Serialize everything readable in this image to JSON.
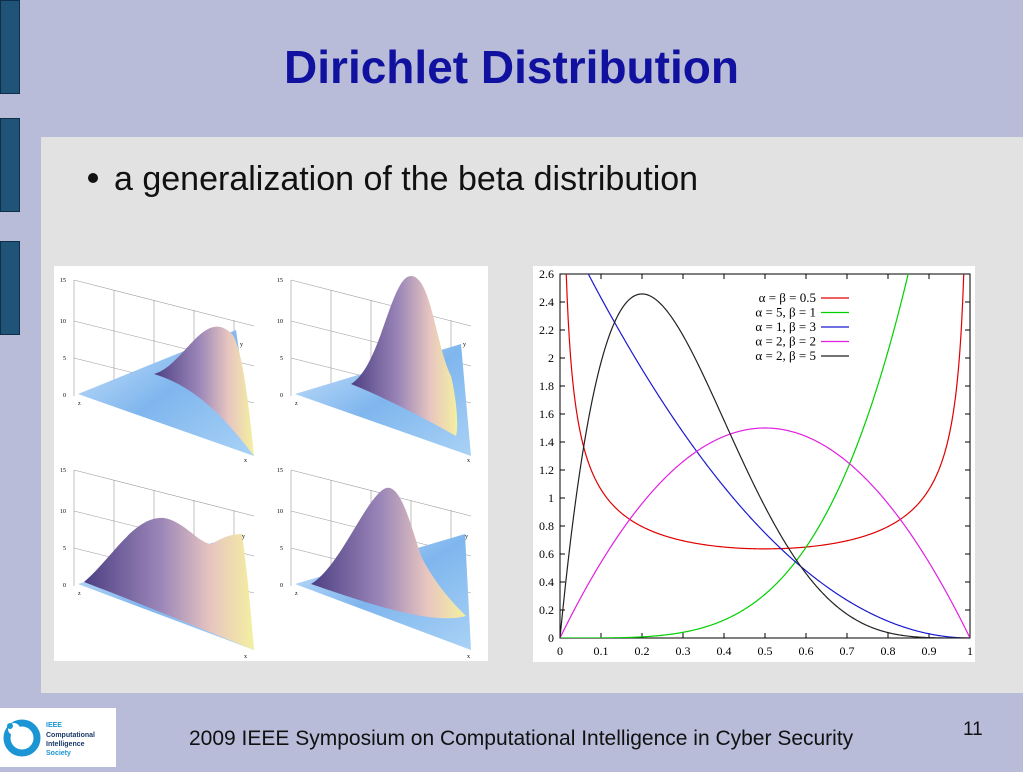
{
  "slide": {
    "title": "Dirichlet Distribution",
    "bullet": "a generalization of the beta distribution",
    "footer": "2009 IEEE Symposium on Computational Intelligence in Cyber Security",
    "page_number": "11"
  },
  "logo": {
    "lines": [
      "IEEE",
      "Computational",
      "Intelligence",
      "Society"
    ]
  },
  "surface_plots": {
    "z_ticks": [
      "15",
      "10",
      "5",
      "0"
    ],
    "axis_letters": {
      "x": "x",
      "y": "y",
      "z": "z"
    }
  },
  "chart_data": {
    "type": "line",
    "title": "",
    "xlabel": "",
    "ylabel": "",
    "xlim": [
      0,
      1
    ],
    "ylim": [
      0,
      2.6
    ],
    "x_ticks": [
      "0",
      "0.1",
      "0.2",
      "0.3",
      "0.4",
      "0.5",
      "0.6",
      "0.7",
      "0.8",
      "0.9",
      "1"
    ],
    "y_ticks": [
      "0",
      "0.2",
      "0.4",
      "0.6",
      "0.8",
      "1",
      "1.2",
      "1.4",
      "1.6",
      "1.8",
      "2",
      "2.2",
      "2.4",
      "2.6"
    ],
    "legend_position": "top-right",
    "series": [
      {
        "name": "α = β = 0.5",
        "color": "#e00000",
        "alpha": 0.5,
        "beta": 0.5
      },
      {
        "name": "α = 5, β = 1",
        "color": "#00d000",
        "alpha": 5,
        "beta": 1
      },
      {
        "name": "α = 1, β = 3",
        "color": "#1a1ad0",
        "alpha": 1,
        "beta": 3
      },
      {
        "name": "α = 2, β = 2",
        "color": "#e020e0",
        "alpha": 2,
        "beta": 2
      },
      {
        "name": "α = 2, β = 5",
        "color": "#222222",
        "alpha": 2,
        "beta": 5
      }
    ]
  }
}
